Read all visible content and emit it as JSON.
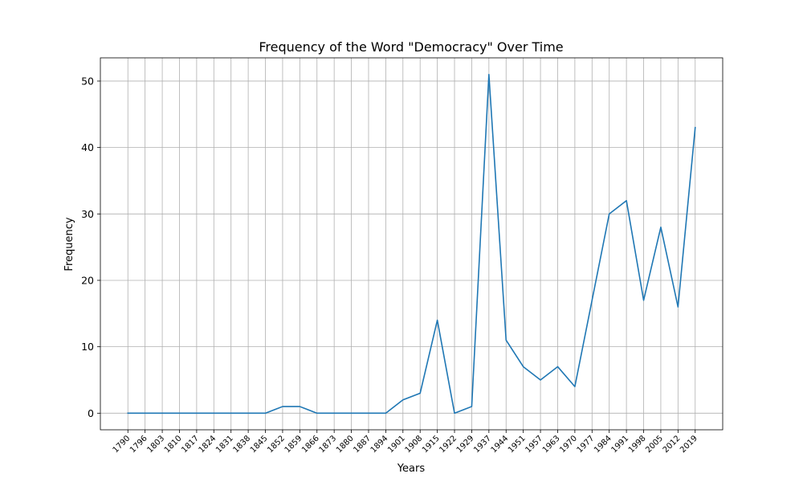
{
  "chart_data": {
    "type": "line",
    "title": "Frequency of the Word \"Democracy\" Over Time",
    "xlabel": "Years",
    "ylabel": "Frequency",
    "categories": [
      "1790",
      "1796",
      "1803",
      "1810",
      "1817",
      "1824",
      "1831",
      "1838",
      "1845",
      "1852",
      "1859",
      "1866",
      "1873",
      "1880",
      "1887",
      "1894",
      "1901",
      "1908",
      "1915",
      "1922",
      "1929",
      "1937",
      "1944",
      "1951",
      "1957",
      "1963",
      "1970",
      "1977",
      "1984",
      "1991",
      "1998",
      "2005",
      "2012",
      "2019"
    ],
    "values": [
      0,
      0,
      0,
      0,
      0,
      0,
      0,
      0,
      0,
      1,
      1,
      0,
      0,
      0,
      0,
      0,
      2,
      3,
      14,
      0,
      1,
      51,
      11,
      7,
      5,
      7,
      4,
      17,
      30,
      32,
      17,
      28,
      16,
      43
    ],
    "ylim": [
      -2.5,
      53.5
    ],
    "yticks": [
      0,
      10,
      20,
      30,
      40,
      50
    ],
    "grid": true,
    "line_color": "#1f77b4"
  }
}
